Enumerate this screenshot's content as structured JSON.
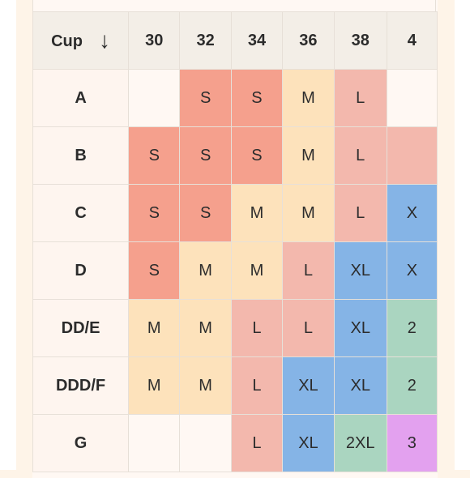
{
  "table": {
    "cup_header": "Cup",
    "band_sizes": [
      "30",
      "32",
      "34",
      "36",
      "38",
      "4"
    ],
    "rows": [
      {
        "cup": "A",
        "cells": [
          {
            "v": "",
            "c": "e"
          },
          {
            "v": "S",
            "c": "s"
          },
          {
            "v": "S",
            "c": "s"
          },
          {
            "v": "M",
            "c": "m"
          },
          {
            "v": "L",
            "c": "l"
          },
          {
            "v": "",
            "c": "e"
          }
        ]
      },
      {
        "cup": "B",
        "cells": [
          {
            "v": "S",
            "c": "s"
          },
          {
            "v": "S",
            "c": "s"
          },
          {
            "v": "S",
            "c": "s"
          },
          {
            "v": "M",
            "c": "m"
          },
          {
            "v": "L",
            "c": "l"
          },
          {
            "v": "",
            "c": "l"
          }
        ]
      },
      {
        "cup": "C",
        "cells": [
          {
            "v": "S",
            "c": "s"
          },
          {
            "v": "S",
            "c": "s"
          },
          {
            "v": "M",
            "c": "m"
          },
          {
            "v": "M",
            "c": "m"
          },
          {
            "v": "L",
            "c": "l"
          },
          {
            "v": "X",
            "c": "xl"
          }
        ]
      },
      {
        "cup": "D",
        "cells": [
          {
            "v": "S",
            "c": "s"
          },
          {
            "v": "M",
            "c": "m"
          },
          {
            "v": "M",
            "c": "m"
          },
          {
            "v": "L",
            "c": "l"
          },
          {
            "v": "XL",
            "c": "xl"
          },
          {
            "v": "X",
            "c": "xl"
          }
        ]
      },
      {
        "cup": "DD/E",
        "cells": [
          {
            "v": "M",
            "c": "m"
          },
          {
            "v": "M",
            "c": "m"
          },
          {
            "v": "L",
            "c": "l"
          },
          {
            "v": "L",
            "c": "l"
          },
          {
            "v": "XL",
            "c": "xl"
          },
          {
            "v": "2",
            "c": "x2"
          }
        ]
      },
      {
        "cup": "DDD/F",
        "cells": [
          {
            "v": "M",
            "c": "m"
          },
          {
            "v": "M",
            "c": "m"
          },
          {
            "v": "L",
            "c": "l"
          },
          {
            "v": "XL",
            "c": "xl"
          },
          {
            "v": "XL",
            "c": "xl"
          },
          {
            "v": "2",
            "c": "x2"
          }
        ]
      },
      {
        "cup": "G",
        "cells": [
          {
            "v": "",
            "c": "e"
          },
          {
            "v": "",
            "c": "e"
          },
          {
            "v": "L",
            "c": "l"
          },
          {
            "v": "XL",
            "c": "xl"
          },
          {
            "v": "2XL",
            "c": "x2"
          },
          {
            "v": "3",
            "c": "x3"
          }
        ]
      }
    ]
  },
  "icons": {
    "sort": "arrow-down-icon"
  },
  "colors": {
    "page_background": "#fef4e8",
    "header_background": "#f3eee7",
    "size_S": "#f5a08d",
    "size_M": "#fde2bb",
    "size_L": "#f3b8ad",
    "size_XL": "#85b4e6",
    "size_2XL": "#aad5c0",
    "size_3XL": "#e3a1ef"
  }
}
